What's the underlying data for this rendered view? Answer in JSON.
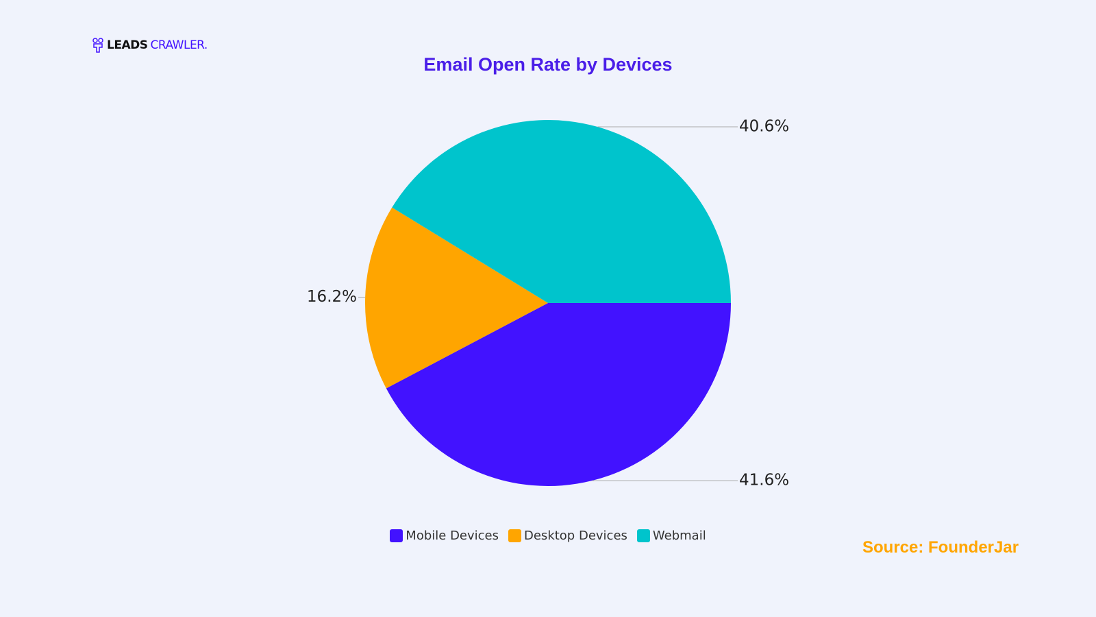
{
  "logo": {
    "main": "LEADS",
    "accent": "CRAWLER."
  },
  "source": "Source: FounderJar",
  "chart_data": {
    "type": "pie",
    "title": "Email Open Rate by Devices",
    "categories": [
      "Mobile Devices",
      "Desktop Devices",
      "Webmail"
    ],
    "values": [
      41.6,
      16.2,
      40.6
    ],
    "value_labels": [
      "41.6%",
      "16.2%",
      "40.6%"
    ],
    "colors": [
      "#4212ff",
      "#ffa500",
      "#00c4cc"
    ],
    "legend": "bottom"
  }
}
